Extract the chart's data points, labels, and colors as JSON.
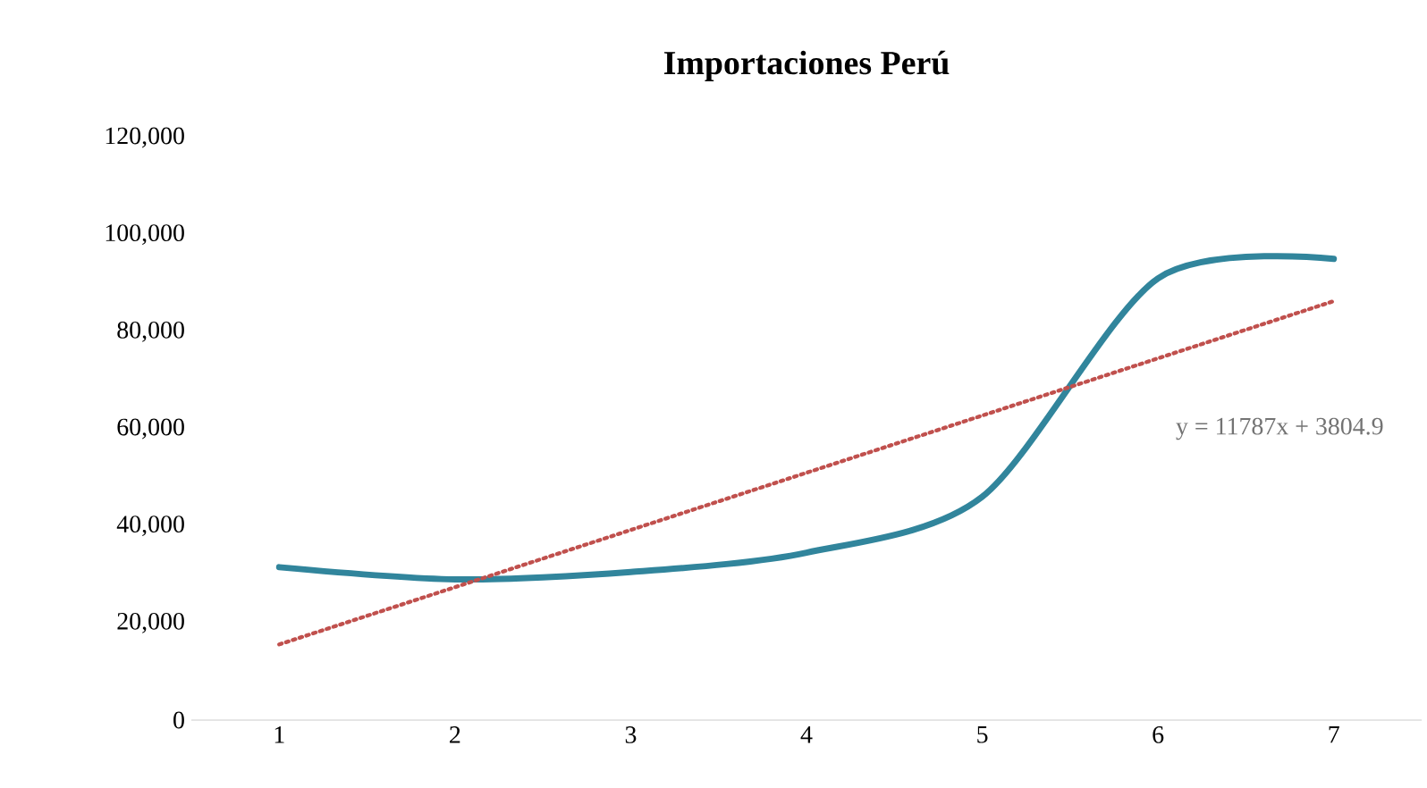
{
  "chart_data": {
    "type": "line",
    "title": "Importaciones Perú",
    "xlim": [
      0.5,
      7.5
    ],
    "xticks": [
      1,
      2,
      3,
      4,
      5,
      6,
      7
    ],
    "ylim": [
      0,
      120000
    ],
    "yticks": [
      {
        "value": 0,
        "label": "0"
      },
      {
        "value": 20000,
        "label": "20,000"
      },
      {
        "value": 40000,
        "label": "40,000"
      },
      {
        "value": 60000,
        "label": "60,000"
      },
      {
        "value": 80000,
        "label": "80,000"
      },
      {
        "value": 100000,
        "label": "100,000"
      },
      {
        "value": 120000,
        "label": "120,000"
      }
    ],
    "grid": false,
    "series": [
      {
        "color": "#31859c",
        "x": [
          1,
          2,
          3,
          4,
          5,
          6,
          7
        ],
        "values": [
          31500,
          29000,
          30500,
          34500,
          46000,
          91000,
          95000
        ]
      },
      {
        "type": "line",
        "color": "#c0504d",
        "line_style": "dotted",
        "x": [
          1,
          7
        ],
        "values": [
          15591.9,
          86313.9
        ]
      }
    ],
    "annotations": [
      "y = 11787x + 3804.9"
    ]
  }
}
